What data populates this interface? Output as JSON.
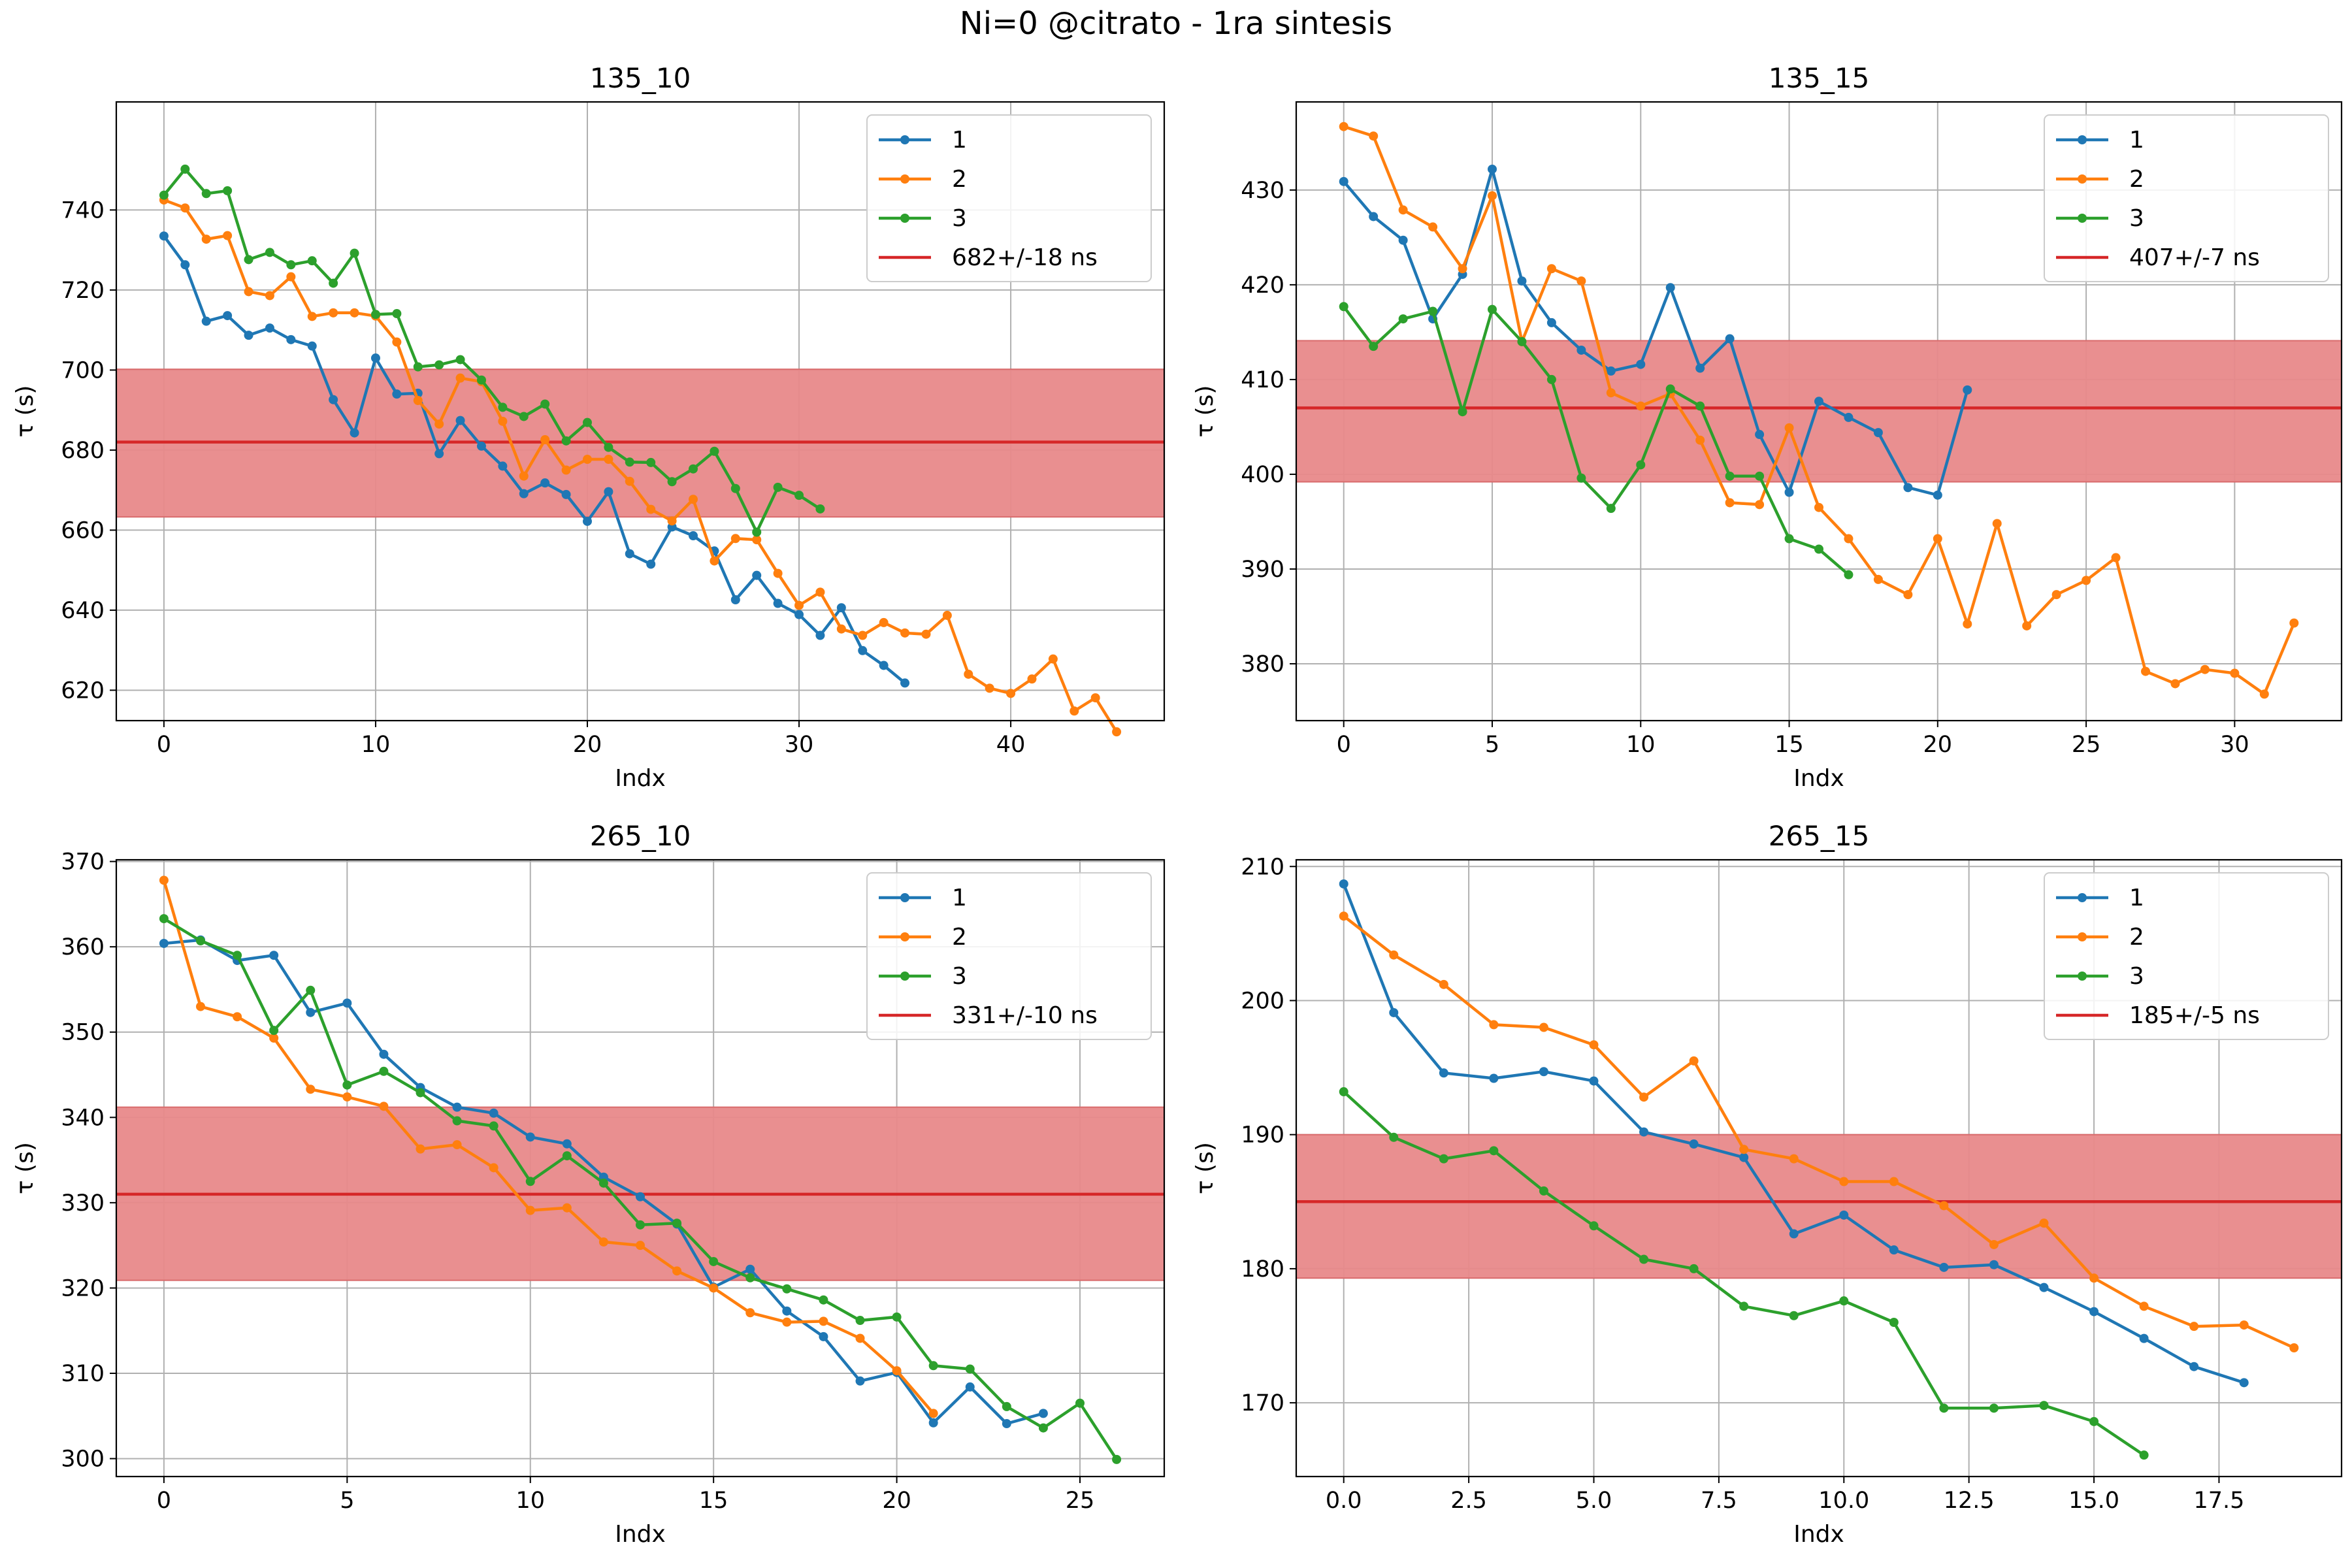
{
  "figure": {
    "suptitle": "Ni=0 @citrato - 1ra sintesis"
  },
  "colors": {
    "s1": "#1f77b4",
    "s2": "#ff7f0e",
    "s3": "#2ca02c",
    "mean": "#d62728",
    "band": "#e8898a"
  },
  "chart_data": [
    {
      "type": "line",
      "title": "135_10",
      "xlabel": "Indx",
      "ylabel": "τ (s)",
      "xlim": [
        -2.25,
        47.25
      ],
      "ylim": [
        612.4,
        767.0
      ],
      "xticks": [
        0,
        10,
        20,
        30,
        40
      ],
      "xtick_labels": [
        "0",
        "10",
        "20",
        "30",
        "40"
      ],
      "yticks": [
        620,
        640,
        660,
        680,
        700,
        720,
        740
      ],
      "legend_position": "upper right",
      "grid": true,
      "mean": 682,
      "band": [
        663.3,
        700.2
      ],
      "mean_label": "682+/-18 ns",
      "series": [
        {
          "name": "1",
          "y": [
            733.5,
            726.3,
            712.2,
            713.6,
            708.7,
            710.5,
            707.6,
            706.0,
            692.6,
            684.3,
            703.0,
            694.0,
            694.2,
            679.1,
            687.4,
            681.0,
            676.0,
            669.1,
            671.8,
            668.9,
            662.2,
            669.6,
            654.1,
            651.5,
            660.8,
            658.6,
            654.8,
            642.6,
            648.7,
            641.7,
            638.9,
            633.7,
            640.6,
            629.9,
            626.2,
            621.8
          ]
        },
        {
          "name": "2",
          "y": [
            742.5,
            740.5,
            732.7,
            733.6,
            719.6,
            718.6,
            723.3,
            713.4,
            714.3,
            714.3,
            713.5,
            707.0,
            692.4,
            686.5,
            698.0,
            697.1,
            687.2,
            673.5,
            682.6,
            675.0,
            677.7,
            677.7,
            672.2,
            665.2,
            662.3,
            667.7,
            652.3,
            657.9,
            657.6,
            649.2,
            641.2,
            644.5,
            635.3,
            633.7,
            636.9,
            634.3,
            634.0,
            638.7,
            624.0,
            620.5,
            619.2,
            622.8,
            627.8,
            614.8,
            618.1,
            609.6
          ]
        },
        {
          "name": "3",
          "y": [
            743.7,
            750.2,
            744.1,
            744.8,
            727.6,
            729.4,
            726.3,
            727.3,
            721.7,
            729.2,
            713.9,
            714.1,
            700.8,
            701.3,
            702.6,
            697.5,
            690.7,
            688.4,
            691.5,
            682.3,
            686.9,
            680.7,
            677.0,
            676.9,
            672.1,
            675.3,
            679.7,
            670.4,
            659.5,
            670.7,
            668.7,
            665.3
          ]
        }
      ]
    },
    {
      "type": "line",
      "title": "135_15",
      "xlabel": "Indx",
      "ylabel": "τ (s)",
      "xlim": [
        -1.6,
        33.6
      ],
      "ylim": [
        374.0,
        439.3
      ],
      "xticks": [
        0,
        5,
        10,
        15,
        20,
        25,
        30
      ],
      "xtick_labels": [
        "0",
        "5",
        "10",
        "15",
        "20",
        "25",
        "30"
      ],
      "yticks": [
        380,
        390,
        400,
        410,
        420,
        430
      ],
      "legend_position": "upper right",
      "grid": true,
      "mean": 407,
      "band": [
        399.2,
        414.1
      ],
      "mean_label": "407+/-7 ns",
      "series": [
        {
          "name": "1",
          "y": [
            430.9,
            427.2,
            424.7,
            416.4,
            421.1,
            432.2,
            420.4,
            416.0,
            413.1,
            410.9,
            411.6,
            419.7,
            411.2,
            414.3,
            404.2,
            398.1,
            407.7,
            406.0,
            404.4,
            398.6,
            397.8,
            408.9
          ]
        },
        {
          "name": "2",
          "y": [
            436.7,
            435.7,
            427.9,
            426.1,
            421.7,
            429.4,
            414.0,
            421.7,
            420.4,
            408.6,
            407.2,
            408.5,
            403.6,
            397.0,
            396.8,
            404.9,
            396.5,
            393.2,
            388.9,
            387.3,
            393.2,
            384.2,
            394.8,
            384.0,
            387.3,
            388.8,
            391.2,
            379.2,
            377.9,
            379.4,
            379.0,
            376.8,
            384.3
          ]
        },
        {
          "name": "3",
          "y": [
            417.7,
            413.5,
            416.4,
            417.2,
            406.6,
            417.4,
            414.0,
            410.0,
            399.6,
            396.4,
            401.0,
            409.0,
            407.2,
            399.8,
            399.8,
            393.2,
            392.1,
            389.4
          ]
        }
      ]
    },
    {
      "type": "line",
      "title": "265_10",
      "xlabel": "Indx",
      "ylabel": "τ (s)",
      "xlim": [
        -1.3,
        27.3
      ],
      "ylim": [
        297.9,
        370.2
      ],
      "xticks": [
        0,
        5,
        10,
        15,
        20,
        25
      ],
      "xtick_labels": [
        "0",
        "5",
        "10",
        "15",
        "20",
        "25"
      ],
      "yticks": [
        300,
        310,
        320,
        330,
        340,
        350,
        360,
        370
      ],
      "legend_position": "upper right",
      "grid": true,
      "mean": 331,
      "band": [
        320.9,
        341.2
      ],
      "mean_label": "331+/-10 ns",
      "series": [
        {
          "name": "1",
          "y": [
            360.4,
            360.8,
            358.4,
            359.0,
            352.3,
            353.4,
            347.4,
            343.5,
            341.2,
            340.5,
            337.7,
            336.9,
            333.0,
            330.7,
            327.5,
            320.1,
            322.2,
            317.3,
            314.3,
            309.1,
            310.1,
            304.2,
            308.4,
            304.1,
            305.3
          ]
        },
        {
          "name": "2",
          "y": [
            367.8,
            353.0,
            351.8,
            349.3,
            343.3,
            342.4,
            341.3,
            336.3,
            336.8,
            334.1,
            329.1,
            329.4,
            325.4,
            325.0,
            322.0,
            320.0,
            317.1,
            316.0,
            316.1,
            314.1,
            310.3,
            305.3
          ]
        },
        {
          "name": "3",
          "y": [
            363.3,
            360.7,
            359.0,
            350.2,
            354.9,
            343.8,
            345.4,
            342.9,
            339.6,
            339.0,
            332.5,
            335.5,
            332.3,
            327.4,
            327.6,
            323.1,
            321.2,
            319.9,
            318.6,
            316.2,
            316.6,
            310.9,
            310.5,
            306.1,
            303.6,
            306.5,
            299.9
          ]
        }
      ]
    },
    {
      "type": "line",
      "title": "265_15",
      "xlabel": "Indx",
      "ylabel": "τ (s)",
      "xlim": [
        -0.95,
        19.95
      ],
      "ylim": [
        164.5,
        210.5
      ],
      "xticks": [
        0,
        2.5,
        5,
        7.5,
        10,
        12.5,
        15,
        17.5
      ],
      "xtick_labels": [
        "0.0",
        "2.5",
        "5.0",
        "7.5",
        "10.0",
        "12.5",
        "15.0",
        "17.5"
      ],
      "yticks": [
        170,
        180,
        190,
        200,
        210
      ],
      "legend_position": "upper right",
      "grid": true,
      "mean": 185,
      "band": [
        179.3,
        190.0
      ],
      "mean_label": "185+/-5 ns",
      "series": [
        {
          "name": "1",
          "y": [
            208.7,
            199.1,
            194.6,
            194.2,
            194.7,
            194.0,
            190.2,
            189.3,
            188.3,
            182.6,
            184.0,
            181.4,
            180.1,
            180.3,
            178.6,
            176.8,
            174.8,
            172.7,
            171.5
          ]
        },
        {
          "name": "2",
          "y": [
            206.3,
            203.4,
            201.2,
            198.2,
            198.0,
            196.7,
            192.8,
            195.5,
            188.9,
            188.2,
            186.5,
            186.5,
            184.7,
            181.8,
            183.4,
            179.3,
            177.2,
            175.7,
            175.8,
            174.1
          ]
        },
        {
          "name": "3",
          "y": [
            193.2,
            189.8,
            188.2,
            188.8,
            185.8,
            183.2,
            180.7,
            180.0,
            177.2,
            176.5,
            177.6,
            176.0,
            169.6,
            169.6,
            169.8,
            168.6,
            166.1
          ]
        }
      ]
    }
  ]
}
